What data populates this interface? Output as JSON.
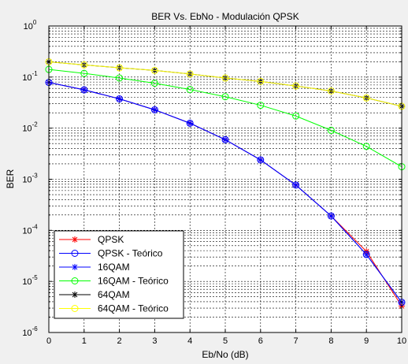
{
  "chart_data": {
    "type": "line",
    "title": "BER Vs. EbNo - Modulación QPSK",
    "xlabel": "Eb/No (dB)",
    "ylabel": "BER",
    "xlim": [
      0,
      10
    ],
    "ylim": [
      1e-06,
      1
    ],
    "yscale": "log",
    "grid": "on (major and minor)",
    "legend_location": "bottom-left",
    "x": [
      0,
      1,
      2,
      3,
      4,
      5,
      6,
      7,
      8,
      9,
      10
    ],
    "xtick_labels": [
      "0",
      "1",
      "2",
      "3",
      "4",
      "5",
      "6",
      "7",
      "8",
      "9",
      "10"
    ],
    "ytick_labels": [
      {
        "base": "10",
        "exp": "0",
        "value": 1
      },
      {
        "base": "10",
        "exp": "-1",
        "value": 0.1
      },
      {
        "base": "10",
        "exp": "-2",
        "value": 0.01
      },
      {
        "base": "10",
        "exp": "-3",
        "value": 0.001
      },
      {
        "base": "10",
        "exp": "-4",
        "value": 0.0001
      },
      {
        "base": "10",
        "exp": "-5",
        "value": 1e-05
      },
      {
        "base": "10",
        "exp": "-6",
        "value": 1e-06
      }
    ],
    "series": [
      {
        "name": "QPSK",
        "color": "#ff0000",
        "marker": "star",
        "values": [
          0.0786,
          0.0563,
          0.0375,
          0.0229,
          0.0125,
          0.00595,
          0.00239,
          0.00077,
          0.000191,
          3.87e-05,
          3.3e-06
        ]
      },
      {
        "name": "QPSK - Teórico",
        "color": "#0000ff",
        "marker": "circle",
        "values": [
          0.0786,
          0.0563,
          0.0375,
          0.0229,
          0.0125,
          0.00595,
          0.00239,
          0.00077,
          0.000191,
          3.36e-05,
          3.9e-06
        ]
      },
      {
        "name": "16QAM",
        "color": "#0000ff",
        "marker": "star",
        "values": [
          0.0786,
          0.0563,
          0.0375,
          0.0229,
          0.0125,
          0.00595,
          0.00239,
          0.00077,
          0.000191,
          3.36e-05,
          3.9e-06
        ]
      },
      {
        "name": "16QAM - Teórico",
        "color": "#00ff00",
        "marker": "circle",
        "values": [
          0.141,
          0.118,
          0.0961,
          0.0759,
          0.0571,
          0.0413,
          0.0281,
          0.0173,
          0.00908,
          0.00439,
          0.00176
        ]
      },
      {
        "name": "64QAM",
        "color": "#000000",
        "marker": "star",
        "values": [
          0.199,
          0.173,
          0.152,
          0.135,
          0.115,
          0.0958,
          0.0822,
          0.0671,
          0.0534,
          0.0391,
          0.0268
        ]
      },
      {
        "name": "64QAM - Teórico",
        "color": "#ffff00",
        "marker": "circle",
        "values": [
          0.199,
          0.173,
          0.152,
          0.135,
          0.115,
          0.0958,
          0.0822,
          0.0671,
          0.0534,
          0.0391,
          0.0268
        ]
      }
    ]
  }
}
